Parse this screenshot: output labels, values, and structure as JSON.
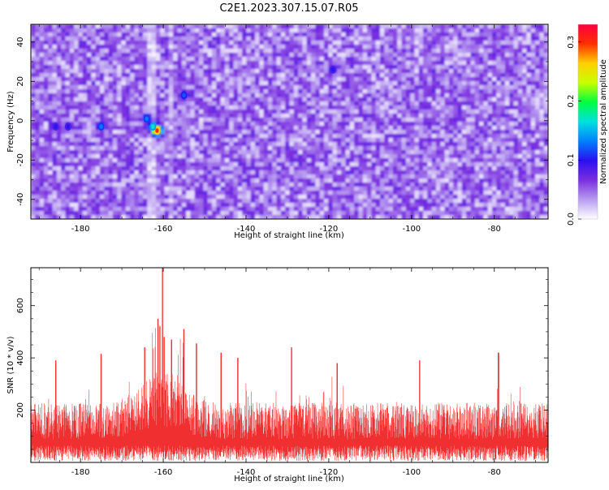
{
  "title": "C2E1.2023.307.15.07.R05",
  "chart_data": [
    {
      "type": "heatmap",
      "xlabel": "Height of straight line (km)",
      "ylabel": "Frequency (Hz)",
      "xlim": [
        -192,
        -67
      ],
      "ylim": [
        -50,
        49
      ],
      "x_ticks": [
        -180,
        -160,
        -140,
        -120,
        -100,
        -80
      ],
      "y_ticks": [
        -40,
        -20,
        0,
        20,
        40
      ],
      "colorbar": {
        "label": "Normalized spectral amplitude",
        "range": [
          0.0,
          0.33
        ],
        "ticks": [
          0.0,
          0.1,
          0.2,
          0.3
        ],
        "colors": [
          "#ffffff",
          "#b89cf0",
          "#7b2fe0",
          "#2a10f0",
          "#0080ff",
          "#00e0e0",
          "#00ff40",
          "#c8ff00",
          "#ffd000",
          "#ff3000",
          "#ff0040"
        ]
      },
      "hotspots": [
        {
          "x": -161.5,
          "y": -5,
          "value": 0.3
        },
        {
          "x": -162.5,
          "y": -3,
          "value": 0.17
        },
        {
          "x": -164,
          "y": 1,
          "value": 0.13
        },
        {
          "x": -175,
          "y": -3,
          "value": 0.13
        },
        {
          "x": -186,
          "y": -3,
          "value": 0.1
        },
        {
          "x": -155,
          "y": 13,
          "value": 0.12
        },
        {
          "x": -119,
          "y": 26,
          "value": 0.1
        },
        {
          "x": -183,
          "y": -3,
          "value": 0.1
        }
      ],
      "background_level": 0.06,
      "grid": false
    },
    {
      "type": "line",
      "xlabel": "Height of straight line (km)",
      "ylabel": "SNR (10 * v/v)",
      "xlim": [
        -192,
        -67
      ],
      "ylim": [
        0,
        745
      ],
      "x_ticks": [
        -180,
        -160,
        -140,
        -120,
        -100,
        -80
      ],
      "y_ticks": [
        200,
        400,
        600
      ],
      "series_color": "#f03030",
      "baseline_mean": 130,
      "noise_max": 300,
      "peaks": [
        {
          "x": -160.2,
          "y": 745
        },
        {
          "x": -161.3,
          "y": 550
        },
        {
          "x": -160.8,
          "y": 520
        },
        {
          "x": -159.8,
          "y": 480
        },
        {
          "x": -158.0,
          "y": 470
        },
        {
          "x": -155.0,
          "y": 510
        },
        {
          "x": -164.5,
          "y": 440
        },
        {
          "x": -152.0,
          "y": 455
        },
        {
          "x": -175.0,
          "y": 415
        },
        {
          "x": -146.0,
          "y": 420
        },
        {
          "x": -129.0,
          "y": 440
        },
        {
          "x": -142.0,
          "y": 400
        },
        {
          "x": -79.0,
          "y": 420
        },
        {
          "x": -98.0,
          "y": 390
        },
        {
          "x": -118.0,
          "y": 380
        },
        {
          "x": -186.0,
          "y": 390
        }
      ],
      "grid": false
    }
  ]
}
